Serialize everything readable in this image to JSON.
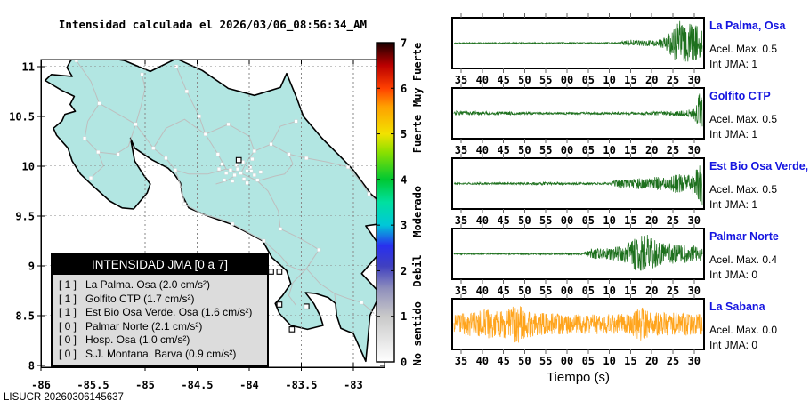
{
  "footer": {
    "watermark": "LISUCR 20260306145637"
  },
  "chart_data": {
    "map": {
      "type": "map",
      "title": "Intensidad calculada el 2026/03/06_08:56:34_AM",
      "lon_ticks": [
        -86,
        -85.5,
        -85,
        -84.5,
        -84,
        -83.5,
        -83
      ],
      "lat_ticks": [
        8,
        8.5,
        9,
        9.5,
        10,
        10.5,
        11
      ],
      "lon_range": [
        -86.0,
        -82.7
      ],
      "lat_range": [
        7.98,
        11.07
      ],
      "grid": true,
      "land_color": "#b2e6e2",
      "coast_color": "#000000",
      "road_color": "#bebebe",
      "town_marker_color": "#ffffff",
      "station_markers": [
        [
          -83.79,
          8.94
        ],
        [
          -83.71,
          8.94
        ],
        [
          -83.71,
          8.61
        ],
        [
          -83.45,
          8.59
        ],
        [
          -83.59,
          8.36
        ],
        [
          -84.1,
          10.06
        ]
      ]
    },
    "legend": {
      "title": "INTENSIDAD JMA [0 a 7]",
      "rows": [
        {
          "intensity": "[ 1 ]",
          "label": "La Palma. Osa (2.0 cm/s²)"
        },
        {
          "intensity": "[ 1 ]",
          "label": "Golfito CTP (1.7 cm/s²)"
        },
        {
          "intensity": "[ 1 ]",
          "label": "Est Bio Osa Verde. Osa (1.6 cm/s²)"
        },
        {
          "intensity": "[ 0 ]",
          "label": "Palmar Norte (2.1 cm/s²)"
        },
        {
          "intensity": "[ 0 ]",
          "label": "Hosp. Osa (1.0 cm/s²)"
        },
        {
          "intensity": "[ 0 ]",
          "label": "S.J. Montana. Barva (0.9 cm/s²)"
        }
      ]
    },
    "colorbar": {
      "range": [
        0,
        7
      ],
      "ticks": [
        0,
        1,
        2,
        3,
        4,
        5,
        6,
        7
      ],
      "gradient_stops": [
        {
          "value": 0.0,
          "color": "#ffffff"
        },
        {
          "value": 1.0,
          "color": "#c9c9c9"
        },
        {
          "value": 1.6,
          "color": "#9090bc"
        },
        {
          "value": 2.1,
          "color": "#4040c0"
        },
        {
          "value": 2.55,
          "color": "#2830ee"
        },
        {
          "value": 3.0,
          "color": "#00c8d8"
        },
        {
          "value": 3.5,
          "color": "#00e0a0"
        },
        {
          "value": 4.0,
          "color": "#00c832"
        },
        {
          "value": 4.6,
          "color": "#8ce000"
        },
        {
          "value": 5.0,
          "color": "#f2e200"
        },
        {
          "value": 5.6,
          "color": "#ffa000"
        },
        {
          "value": 6.0,
          "color": "#ff4000"
        },
        {
          "value": 6.5,
          "color": "#bb0000"
        },
        {
          "value": 7.0,
          "color": "#1a0000"
        }
      ],
      "category_labels": [
        {
          "text": "No sentido",
          "value": 0.62
        },
        {
          "text": "Debil",
          "value": 2.0
        },
        {
          "text": "Moderado",
          "value": 3.3
        },
        {
          "text": "Fuerte",
          "value": 5.0
        },
        {
          "text": "Muy Fuerte",
          "value": 6.3
        }
      ]
    },
    "seismograms": {
      "type": "line",
      "xlabel": "Tiempo (s)",
      "label_color": "#1414e0",
      "time_ticks": [
        "35",
        "40",
        "45",
        "50",
        "55",
        "00",
        "05",
        "10",
        "15",
        "20",
        "25",
        "30"
      ],
      "stations": [
        {
          "name": "La Palma, Osa",
          "accel": "Acel. Max. 0.5",
          "jma": "Int JMA: 1",
          "color": "#1d701d",
          "seed": 11,
          "amp": 26,
          "envelope": [
            [
              0,
              0.025
            ],
            [
              0.66,
              0.03
            ],
            [
              0.7,
              0.16
            ],
            [
              0.74,
              0.12
            ],
            [
              0.78,
              0.14
            ],
            [
              0.82,
              0.12
            ],
            [
              0.855,
              0.3
            ],
            [
              0.88,
              0.6
            ],
            [
              0.905,
              1.0
            ],
            [
              0.93,
              0.8
            ],
            [
              0.96,
              0.9
            ],
            [
              1,
              0.55
            ]
          ]
        },
        {
          "name": "Golfito CTP",
          "accel": "Acel. Max. 0.5",
          "jma": "Int JMA: 1",
          "color": "#1d701d",
          "seed": 22,
          "amp": 26,
          "envelope": [
            [
              0,
              0.1
            ],
            [
              0.15,
              0.08
            ],
            [
              0.35,
              0.05
            ],
            [
              0.55,
              0.05
            ],
            [
              0.75,
              0.06
            ],
            [
              0.85,
              0.09
            ],
            [
              0.92,
              0.12
            ],
            [
              0.955,
              0.18
            ],
            [
              0.975,
              0.45
            ],
            [
              0.99,
              1.0
            ],
            [
              1,
              0.95
            ]
          ]
        },
        {
          "name": "Est Bio Osa Verde, Osa",
          "accel": "Acel. Max. 0.5",
          "jma": "Int JMA: 1",
          "color": "#1d701d",
          "seed": 33,
          "amp": 26,
          "envelope": [
            [
              0,
              0.035
            ],
            [
              0.28,
              0.05
            ],
            [
              0.38,
              0.06
            ],
            [
              0.48,
              0.05
            ],
            [
              0.6,
              0.04
            ],
            [
              0.63,
              0.05
            ],
            [
              0.655,
              0.22
            ],
            [
              0.7,
              0.16
            ],
            [
              0.74,
              0.25
            ],
            [
              0.78,
              0.2
            ],
            [
              0.82,
              0.35
            ],
            [
              0.86,
              0.25
            ],
            [
              0.9,
              0.45
            ],
            [
              0.94,
              0.35
            ],
            [
              0.97,
              0.5
            ],
            [
              1,
              1.0
            ]
          ]
        },
        {
          "name": "Palmar Norte",
          "accel": "Acel. Max. 0.4",
          "jma": "Int JMA: 0",
          "color": "#1d701d",
          "seed": 44,
          "amp": 26,
          "envelope": [
            [
              0,
              0.03
            ],
            [
              0.4,
              0.035
            ],
            [
              0.52,
              0.04
            ],
            [
              0.555,
              0.22
            ],
            [
              0.62,
              0.25
            ],
            [
              0.68,
              0.35
            ],
            [
              0.72,
              0.6
            ],
            [
              0.755,
              1.0
            ],
            [
              0.79,
              0.75
            ],
            [
              0.83,
              0.5
            ],
            [
              0.88,
              0.45
            ],
            [
              0.94,
              0.4
            ],
            [
              1,
              0.3
            ]
          ]
        },
        {
          "name": "La Sabana",
          "accel": "Acel. Max. 0.0",
          "jma": "Int JMA: 0",
          "color": "#ffa41c",
          "seed": 55,
          "amp": 23,
          "envelope": [
            [
              0,
              0.5
            ],
            [
              0.07,
              0.6
            ],
            [
              0.12,
              0.75
            ],
            [
              0.17,
              0.65
            ],
            [
              0.22,
              0.8
            ],
            [
              0.26,
              1.0
            ],
            [
              0.3,
              0.65
            ],
            [
              0.36,
              0.55
            ],
            [
              0.45,
              0.5
            ],
            [
              0.52,
              0.48
            ],
            [
              0.6,
              0.52
            ],
            [
              0.68,
              0.5
            ],
            [
              0.755,
              0.85
            ],
            [
              0.8,
              0.6
            ],
            [
              0.86,
              0.55
            ],
            [
              0.92,
              0.6
            ],
            [
              1,
              0.5
            ]
          ]
        }
      ]
    }
  }
}
